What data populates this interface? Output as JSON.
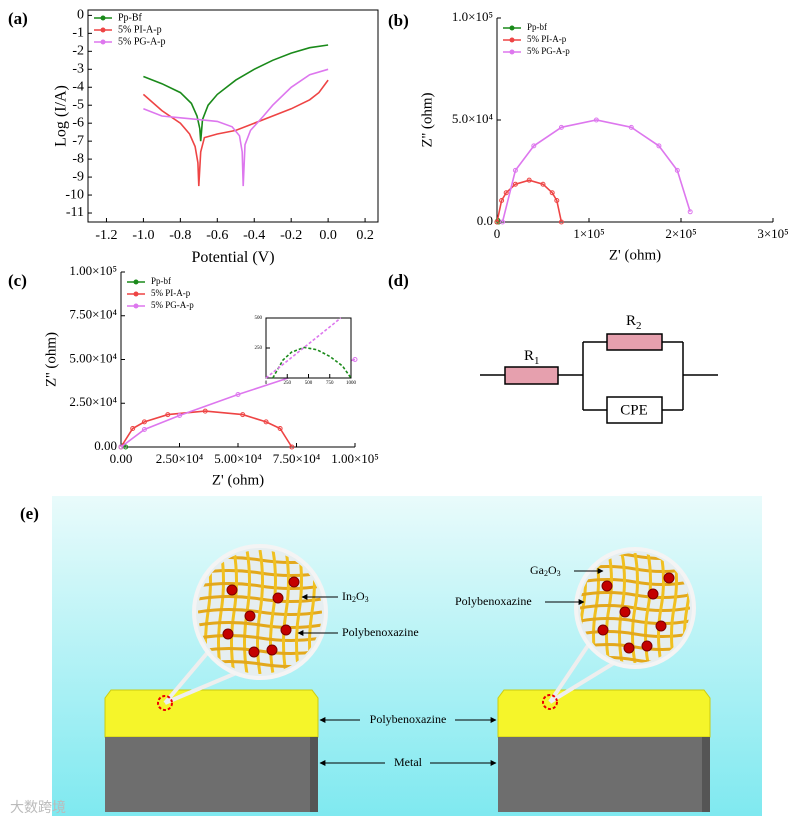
{
  "chart_data": [
    {
      "type": "line",
      "label": "(a)",
      "xlabel": "Potential (V)",
      "ylabel": "Log (I/A)",
      "frame": true,
      "legend": "upper left",
      "xlim": [
        -1.3,
        0.27
      ],
      "ylim": [
        -11.5,
        0.3
      ],
      "xticks": [
        -1.2,
        {
          "value": -1,
          "label": "-1.0"
        },
        -0.8,
        -0.6,
        -0.4,
        -0.2,
        {
          "value": 0,
          "label": "0.0"
        },
        0.2
      ],
      "yticks": [
        0,
        -1,
        -2,
        -3,
        -4,
        -5,
        -6,
        -7,
        -8,
        -9,
        -10,
        -11
      ],
      "series": [
        {
          "name": "Pp-Bf",
          "color": "#1a8a1a",
          "x": [
            -1.0,
            -0.9,
            -0.8,
            -0.74,
            -0.71,
            -0.695,
            -0.69,
            -0.68,
            -0.65,
            -0.6,
            -0.5,
            -0.4,
            -0.3,
            -0.2,
            -0.1,
            0.0
          ],
          "values": [
            -3.4,
            -3.8,
            -4.3,
            -4.9,
            -5.6,
            -6.3,
            -7.0,
            -5.8,
            -5.0,
            -4.4,
            -3.6,
            -3.0,
            -2.5,
            -2.1,
            -1.8,
            -1.65
          ]
        },
        {
          "name": "5% PI-A-p",
          "color": "#ee4444",
          "x": [
            -1.0,
            -0.9,
            -0.8,
            -0.75,
            -0.72,
            -0.705,
            -0.7,
            -0.69,
            -0.67,
            -0.6,
            -0.5,
            -0.4,
            -0.3,
            -0.2,
            -0.1,
            -0.05,
            0.0
          ],
          "values": [
            -4.4,
            -5.3,
            -6.0,
            -6.6,
            -7.3,
            -8.2,
            -9.5,
            -7.6,
            -6.8,
            -6.6,
            -6.4,
            -6.0,
            -5.6,
            -5.2,
            -4.7,
            -4.3,
            -3.6
          ]
        },
        {
          "name": "5% PG-A-p",
          "color": "#dd77ee",
          "x": [
            -1.0,
            -0.9,
            -0.8,
            -0.7,
            -0.6,
            -0.52,
            -0.48,
            -0.465,
            -0.46,
            -0.45,
            -0.42,
            -0.35,
            -0.3,
            -0.2,
            -0.1,
            0.0
          ],
          "values": [
            -5.2,
            -5.6,
            -5.7,
            -5.8,
            -5.9,
            -6.2,
            -6.7,
            -7.6,
            -9.5,
            -7.2,
            -6.4,
            -5.6,
            -5.0,
            -4.0,
            -3.3,
            -3.0
          ]
        }
      ]
    },
    {
      "type": "line",
      "label": "(b)",
      "xlabel": "Z' (ohm)",
      "ylabel": "Z'' (ohm)",
      "frame": false,
      "markers": true,
      "legend": "upper left",
      "xlim": [
        0,
        300000
      ],
      "ylim": [
        0,
        100000
      ],
      "xticks": [
        0,
        {
          "value": 100000,
          "label": "1×10⁵"
        },
        {
          "value": 200000,
          "label": "2×10⁵"
        },
        {
          "value": 300000,
          "label": "3×10⁵"
        }
      ],
      "yticks": [
        {
          "value": 0,
          "label": "0.0"
        },
        {
          "value": 50000,
          "label": "5.0×10⁴"
        },
        {
          "value": 100000,
          "label": "1.0×10⁵"
        }
      ],
      "series": [
        {
          "name": "Pp-bf",
          "color": "#1a8a1a",
          "x": [
            0,
            1000,
            2000
          ],
          "values": [
            0,
            800,
            0
          ]
        },
        {
          "name": "5% PI-A-p",
          "color": "#ee4444",
          "x": [
            0,
            5000,
            10000,
            20000,
            35000,
            50000,
            60000,
            65000,
            70000
          ],
          "values": [
            0,
            10550,
            14350,
            18520,
            20500,
            18520,
            14350,
            10550,
            0
          ]
        },
        {
          "name": "5% PG-A-p",
          "color": "#dd77ee",
          "x": [
            6000,
            20000,
            40000,
            70000,
            108000,
            146000,
            176000,
            196000,
            210000
          ],
          "values": [
            0,
            25300,
            37300,
            46400,
            50000,
            46400,
            37300,
            25300,
            5000
          ]
        }
      ]
    },
    {
      "type": "line",
      "label": "(c)",
      "xlabel": "Z' (ohm)",
      "ylabel": "Z'' (ohm)",
      "frame": false,
      "markers": true,
      "legend": "upper left",
      "xlim": [
        0,
        100000
      ],
      "ylim": [
        0,
        100000
      ],
      "xticks": [
        {
          "value": 0,
          "label": "0.00"
        },
        {
          "value": 25000,
          "label": "2.50×10⁴"
        },
        {
          "value": 50000,
          "label": "5.00×10⁴"
        },
        {
          "value": 75000,
          "label": "7.50×10⁴"
        },
        {
          "value": 100000,
          "label": "1.00×10⁵"
        }
      ],
      "yticks": [
        {
          "value": 0,
          "label": "0.00"
        },
        {
          "value": 25000,
          "label": "2.50×10⁴"
        },
        {
          "value": 50000,
          "label": "5.00×10⁴"
        },
        {
          "value": 75000,
          "label": "7.50×10⁴"
        },
        {
          "value": 100000,
          "label": "1.00×10⁵"
        }
      ],
      "series": [
        {
          "name": "Pp-bf",
          "color": "#1a8a1a",
          "x": [
            0,
            1000,
            2000
          ],
          "values": [
            0,
            800,
            0
          ]
        },
        {
          "name": "5% PI-A-p",
          "color": "#ee4444",
          "x": [
            0,
            5000,
            10000,
            20000,
            36000,
            52000,
            62000,
            68000,
            73000
          ],
          "values": [
            0,
            10550,
            14350,
            18520,
            20500,
            18520,
            14350,
            10550,
            0
          ]
        },
        {
          "name": "5% PG-A-p",
          "color": "#dd77ee",
          "x": [
            0,
            10000,
            25000,
            50000,
            75000,
            100000
          ],
          "values": [
            0,
            10000,
            18000,
            30000,
            41000,
            50000
          ]
        }
      ],
      "inset": {
        "frame": true,
        "xlim": [
          0,
          1000
        ],
        "ylim": [
          0,
          500
        ],
        "xticks": [
          0,
          250,
          500,
          750,
          1000
        ],
        "yticks": [
          250,
          500
        ],
        "series": [
          {
            "color": "#1a8a1a",
            "dashed": true,
            "x": [
              80,
              200,
              300,
              450,
              600,
              750,
              900,
              1000
            ],
            "values": [
              0,
              150,
              215,
              255,
              235,
              180,
              100,
              0
            ]
          },
          {
            "color": "#dd77ee",
            "dashed": true,
            "x": [
              0,
              880
            ],
            "values": [
              0,
              500
            ]
          }
        ]
      }
    }
  ],
  "circuit": {
    "label": "(d)",
    "elements": [
      {
        "symbol": "R",
        "subscript": "1"
      },
      {
        "symbol": "R",
        "subscript": "2"
      },
      {
        "symbol": "CPE"
      }
    ]
  },
  "schematic": {
    "label": "(e)",
    "left": {
      "oxide": [
        "In",
        "2",
        "O",
        "3"
      ],
      "matrix": "Polybenoxazine"
    },
    "right": {
      "oxide": [
        "Ga",
        "2",
        "O",
        "3"
      ],
      "matrix": "Polybenoxazine"
    },
    "coating": "Polybenoxazine",
    "substrate": "Metal"
  },
  "watermark": "大数跨境"
}
